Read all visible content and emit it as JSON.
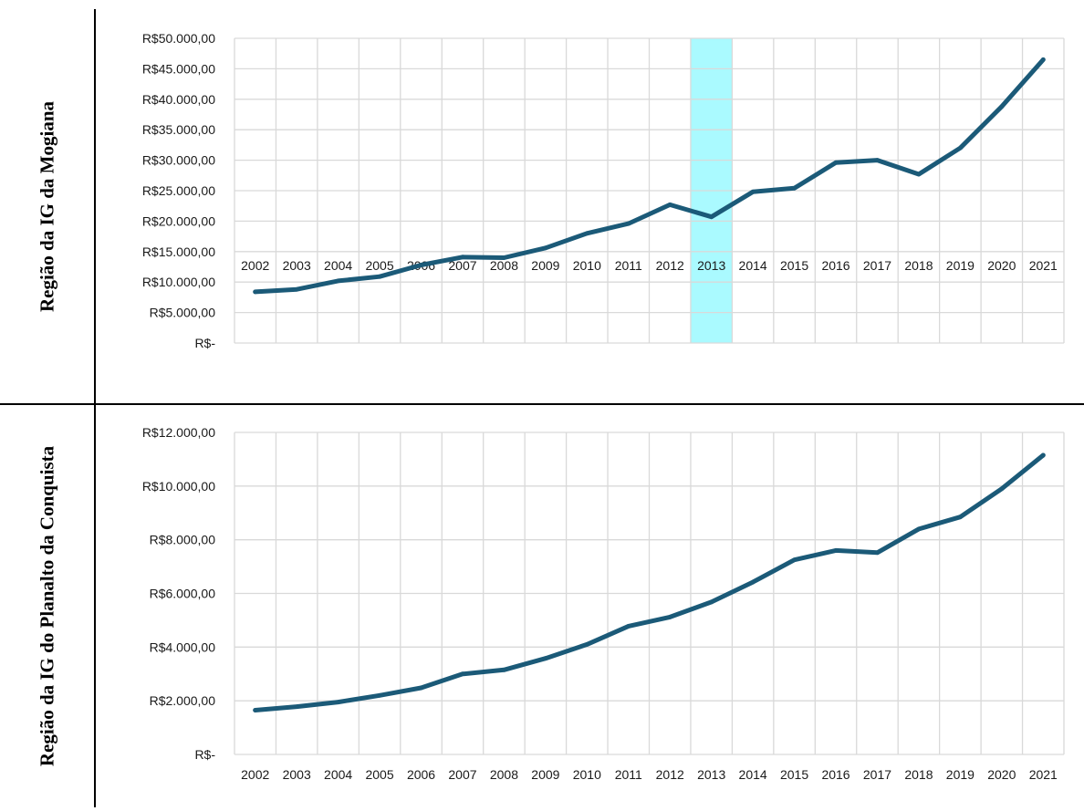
{
  "rows": [
    {
      "label": "Região da IG da Mogiana"
    },
    {
      "label": "Região da IG do Planalto da Conquista"
    }
  ],
  "chart_data": [
    {
      "type": "line",
      "title": "",
      "xlabel": "",
      "ylabel": "",
      "categories": [
        "2002",
        "2003",
        "2004",
        "2005",
        "2006",
        "2007",
        "2008",
        "2009",
        "2010",
        "2011",
        "2012",
        "2013",
        "2014",
        "2015",
        "2016",
        "2017",
        "2018",
        "2019",
        "2020",
        "2021"
      ],
      "series": [
        {
          "values": [
            8400,
            8800,
            10200,
            10900,
            12800,
            14100,
            14000,
            15600,
            18000,
            19600,
            22700,
            20700,
            24800,
            25400,
            29600,
            30000,
            27700,
            32000,
            38800,
            46500
          ]
        }
      ],
      "ylim": [
        0,
        50000
      ],
      "yticks": [
        0,
        5000,
        10000,
        15000,
        20000,
        25000,
        30000,
        35000,
        40000,
        45000,
        50000
      ],
      "yticklabels": [
        "R$-",
        "R$5.000,00",
        "R$10.000,00",
        "R$15.000,00",
        "R$20.000,00",
        "R$25.000,00",
        "R$30.000,00",
        "R$35.000,00",
        "R$40.000,00",
        "R$45.000,00",
        "R$50.000,00"
      ],
      "grid": true,
      "highlight_category": "2013",
      "line_color": "#1b5a78",
      "highlight_color": "#aafaff",
      "grid_color": "#d9d9d9"
    },
    {
      "type": "line",
      "title": "",
      "xlabel": "",
      "ylabel": "",
      "categories": [
        "2002",
        "2003",
        "2004",
        "2005",
        "2006",
        "2007",
        "2008",
        "2009",
        "2010",
        "2011",
        "2012",
        "2013",
        "2014",
        "2015",
        "2016",
        "2017",
        "2018",
        "2019",
        "2020",
        "2021"
      ],
      "series": [
        {
          "values": [
            1650,
            1780,
            1950,
            2200,
            2480,
            3000,
            3150,
            3580,
            4100,
            4780,
            5120,
            5680,
            6420,
            7250,
            7600,
            7520,
            8400,
            8850,
            9900,
            11150
          ]
        }
      ],
      "ylim": [
        0,
        12000
      ],
      "yticks": [
        0,
        2000,
        4000,
        6000,
        8000,
        10000,
        12000
      ],
      "yticklabels": [
        "R$-",
        "R$2.000,00",
        "R$4.000,00",
        "R$6.000,00",
        "R$8.000,00",
        "R$10.000,00",
        "R$12.000,00"
      ],
      "grid": true,
      "line_color": "#1b5a78",
      "grid_color": "#d9d9d9"
    }
  ]
}
